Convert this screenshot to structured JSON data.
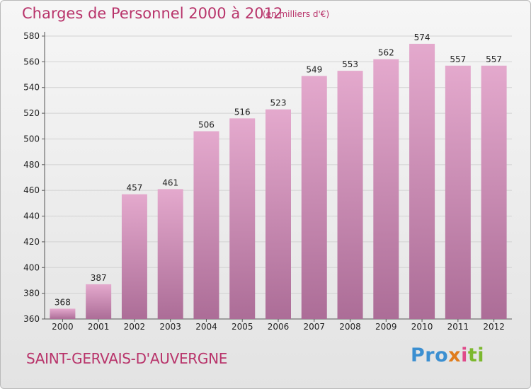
{
  "header": {
    "title": "Charges de Personnel 2000 à 2012",
    "subtitle": "(en milliers d'€)"
  },
  "footer": {
    "commune": "SAINT-GERVAIS-D'AUVERGNE",
    "logo": [
      "Pro",
      "x",
      "i",
      "ti"
    ]
  },
  "colors": {
    "accent": "#b8336a",
    "bar_top": "#e4a9cd",
    "bar_bottom": "#ac6d97",
    "grid": "#d2d2d2"
  },
  "chart_data": {
    "type": "bar",
    "title": "Charges de Personnel 2000 à 2012",
    "subtitle": "(en milliers d'€)",
    "categories": [
      "2000",
      "2001",
      "2002",
      "2003",
      "2004",
      "2005",
      "2006",
      "2007",
      "2008",
      "2009",
      "2010",
      "2011",
      "2012"
    ],
    "values": [
      368,
      387,
      457,
      461,
      506,
      516,
      523,
      549,
      553,
      562,
      574,
      557,
      557
    ],
    "ylim": [
      360,
      580
    ],
    "yticks": [
      360,
      380,
      400,
      420,
      440,
      460,
      480,
      500,
      520,
      540,
      560,
      580
    ],
    "grid": true,
    "xlabel": "",
    "ylabel": ""
  }
}
